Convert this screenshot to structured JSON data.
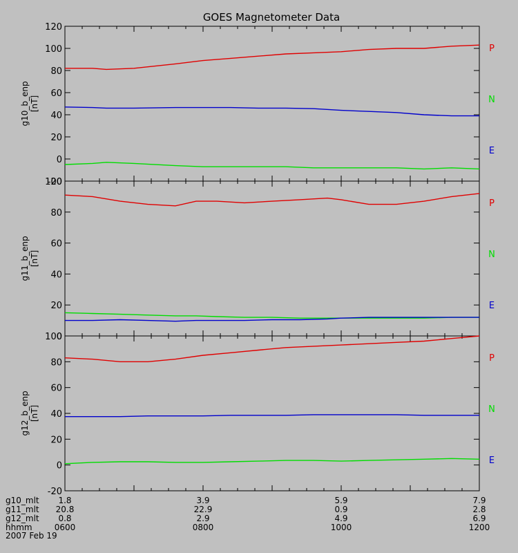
{
  "title": "GOES Magnetometer Data",
  "colors": {
    "background": "#c0c0c0",
    "P": "#e00000",
    "N": "#00dd00",
    "E": "#0000cc",
    "axis": "#000000"
  },
  "legend_labels": [
    "P",
    "N",
    "E"
  ],
  "footer": {
    "row_labels": [
      "g10_mlt",
      "g11_mlt",
      "g12_mlt",
      "hhmm",
      "2007 Feb 19"
    ],
    "columns": [
      {
        "values": [
          "1.8",
          "20.8",
          "0.8",
          "0600"
        ]
      },
      {
        "values": [
          "3.9",
          "22.9",
          "2.9",
          "0800"
        ]
      },
      {
        "values": [
          "5.9",
          "0.9",
          "4.9",
          "1000"
        ]
      },
      {
        "values": [
          "7.9",
          "2.8",
          "6.9",
          "1200"
        ]
      }
    ]
  },
  "chart_data": [
    {
      "type": "line",
      "ylabel": "g10_b_enp",
      "unit": "[nT]",
      "xlim": [
        600,
        1200
      ],
      "ylim": [
        -20,
        120
      ],
      "yticks": [
        -20,
        0,
        20,
        40,
        60,
        80,
        100,
        120
      ],
      "x": [
        600,
        640,
        660,
        700,
        760,
        800,
        840,
        880,
        920,
        960,
        1000,
        1040,
        1080,
        1120,
        1160,
        1200
      ],
      "series": [
        {
          "name": "P",
          "values": [
            82,
            82,
            81,
            82,
            86,
            89,
            91,
            93,
            95,
            96,
            97,
            99,
            100,
            100,
            102,
            103
          ]
        },
        {
          "name": "N",
          "values": [
            -5,
            -4,
            -3,
            -4,
            -6,
            -7,
            -7,
            -7,
            -7,
            -8,
            -8,
            -8,
            -8,
            -9,
            -8,
            -9
          ]
        },
        {
          "name": "E",
          "values": [
            47,
            46.5,
            46,
            46,
            46.5,
            46.5,
            46.5,
            46,
            46,
            45.5,
            44,
            43,
            42,
            40,
            39,
            39
          ]
        }
      ]
    },
    {
      "type": "line",
      "ylabel": "g11_b_enp",
      "unit": "[nT]",
      "xlim": [
        600,
        1200
      ],
      "ylim": [
        0,
        100
      ],
      "yticks": [
        0,
        20,
        40,
        60,
        80,
        100
      ],
      "x": [
        600,
        640,
        680,
        720,
        760,
        790,
        820,
        860,
        900,
        940,
        980,
        1000,
        1040,
        1080,
        1120,
        1160,
        1200
      ],
      "series": [
        {
          "name": "P",
          "values": [
            91,
            90,
            87,
            85,
            84,
            87,
            87,
            86,
            87,
            88,
            89,
            88,
            85,
            85,
            87,
            90,
            92
          ]
        },
        {
          "name": "N",
          "values": [
            15,
            14.5,
            14,
            13.5,
            13,
            13,
            12.5,
            12,
            12,
            11.5,
            11.5,
            11.5,
            11.5,
            11.5,
            11.5,
            12,
            12
          ]
        },
        {
          "name": "E",
          "values": [
            10,
            10,
            10.5,
            10,
            9.5,
            10,
            10,
            10,
            10.5,
            10.5,
            11,
            11.5,
            12,
            12,
            12,
            12,
            12
          ]
        }
      ]
    },
    {
      "type": "line",
      "ylabel": "g12_b_enp",
      "unit": "[nT]",
      "xlim": [
        600,
        1200
      ],
      "ylim": [
        -20,
        100
      ],
      "yticks": [
        -20,
        0,
        20,
        40,
        60,
        80,
        100
      ],
      "x": [
        600,
        640,
        680,
        720,
        760,
        800,
        840,
        880,
        920,
        960,
        1000,
        1040,
        1080,
        1120,
        1160,
        1200
      ],
      "series": [
        {
          "name": "P",
          "values": [
            83,
            82,
            80,
            80,
            82,
            85,
            87,
            89,
            91,
            92,
            93,
            94,
            95,
            96,
            98,
            100
          ]
        },
        {
          "name": "N",
          "values": [
            1,
            2,
            2.5,
            2.5,
            2,
            2,
            2.5,
            3,
            3.5,
            3.5,
            3,
            3.5,
            4,
            4.5,
            5,
            4.5
          ]
        },
        {
          "name": "E",
          "values": [
            37.5,
            37.5,
            37.5,
            38,
            38,
            38,
            38.5,
            38.5,
            38.5,
            39,
            39,
            39,
            39,
            38.5,
            38.5,
            38.5
          ]
        }
      ]
    }
  ]
}
